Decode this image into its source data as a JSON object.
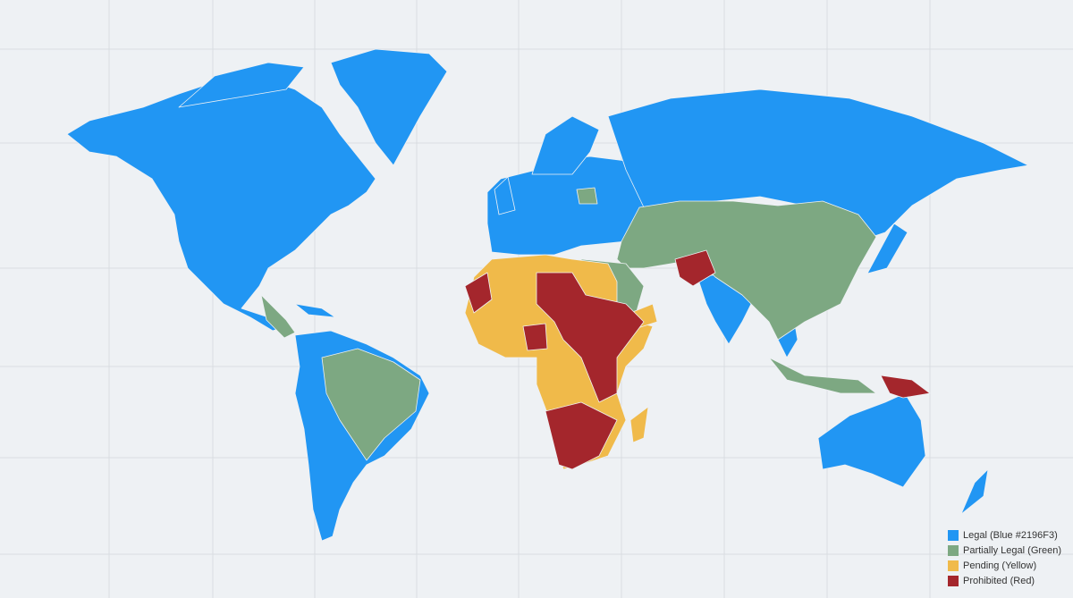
{
  "legend": {
    "items": [
      {
        "label": "Legal (Blue #2196F3)",
        "color": "#2196F3"
      },
      {
        "label": "Partially Legal (Green)",
        "color": "#7DA882"
      },
      {
        "label": "Pending (Yellow)",
        "color": "#F0BA4A"
      },
      {
        "label": "Prohibited (Red)",
        "color": "#A4262C"
      }
    ]
  }
}
